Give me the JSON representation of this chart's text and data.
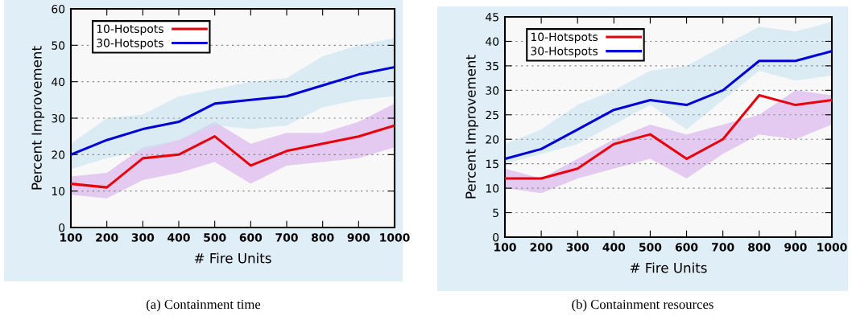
{
  "chart_data": [
    {
      "type": "line",
      "xlabel": "# Fire Units",
      "ylabel": "Percent Improvement",
      "x": [
        100,
        200,
        300,
        400,
        500,
        600,
        700,
        800,
        900,
        1000
      ],
      "xlim": [
        100,
        1000
      ],
      "xticks": [
        100,
        200,
        300,
        400,
        500,
        600,
        700,
        800,
        900,
        1000
      ],
      "ylim": [
        0,
        60
      ],
      "yticks": [
        0,
        10,
        20,
        30,
        40,
        50,
        60
      ],
      "grid": "y",
      "legend": "top left",
      "annotations": [
        "(a) Containment time"
      ],
      "series": [
        {
          "name": "10-Hotspots",
          "color": "#e8000b",
          "values": [
            12,
            11,
            19,
            20,
            25,
            17,
            21,
            23,
            25,
            28
          ],
          "lower": [
            9,
            8,
            13,
            15,
            18,
            12,
            17,
            18,
            19,
            22
          ],
          "upper": [
            14,
            15,
            22,
            24,
            29,
            23,
            26,
            26,
            29,
            34
          ]
        },
        {
          "name": "30-Hotspots",
          "color": "#0000d8",
          "values": [
            20,
            24,
            27,
            29,
            34,
            35,
            36,
            39,
            42,
            44
          ],
          "lower": [
            16,
            19,
            21,
            24,
            28,
            27,
            28,
            33,
            35,
            36
          ],
          "upper": [
            23,
            30,
            31,
            36,
            38,
            40,
            41,
            47,
            50,
            52
          ]
        }
      ]
    },
    {
      "type": "line",
      "xlabel": "# Fire Units",
      "ylabel": "Percent Improvement",
      "x": [
        100,
        200,
        300,
        400,
        500,
        600,
        700,
        800,
        900,
        1000
      ],
      "xlim": [
        100,
        1000
      ],
      "xticks": [
        100,
        200,
        300,
        400,
        500,
        600,
        700,
        800,
        900,
        1000
      ],
      "ylim": [
        0,
        45
      ],
      "yticks": [
        0,
        5,
        10,
        15,
        20,
        25,
        30,
        35,
        40,
        45
      ],
      "grid": "y",
      "legend": "top left",
      "annotations": [
        "(b) Containment resources"
      ],
      "series": [
        {
          "name": "10-Hotspots",
          "color": "#e8000b",
          "values": [
            12,
            12,
            14,
            19,
            21,
            16,
            20,
            29,
            27,
            28
          ],
          "lower": [
            10,
            9,
            12,
            14,
            16,
            12,
            17,
            21,
            20,
            23
          ],
          "upper": [
            14,
            12,
            16,
            20,
            23,
            21,
            23,
            25,
            30,
            29
          ]
        },
        {
          "name": "30-Hotspots",
          "color": "#0000d8",
          "values": [
            16,
            18,
            22,
            26,
            28,
            27,
            30,
            36,
            36,
            38
          ],
          "lower": [
            15,
            17,
            19,
            23,
            27,
            22,
            28,
            34,
            32,
            33
          ],
          "upper": [
            19,
            22,
            27,
            30,
            34,
            35,
            39,
            43,
            42,
            44
          ]
        }
      ]
    }
  ]
}
